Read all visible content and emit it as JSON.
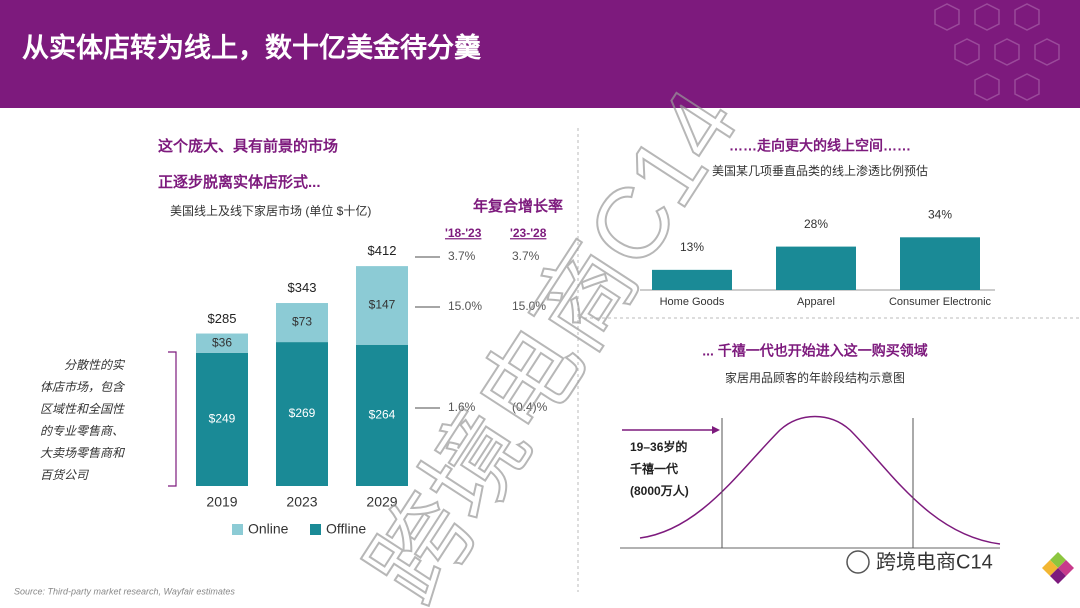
{
  "header": {
    "title": "从实体店转为线上，数十亿美金待分羹"
  },
  "chart_data": [
    {
      "type": "stacked-bar",
      "title_lines": [
        "这个庞大、具有前景的市场",
        "正逐步脱离实体店形式..."
      ],
      "subtitle": "美国线上及线下家居市场 (单位 $十亿)",
      "categories": [
        "2019",
        "2023",
        "2029"
      ],
      "series": [
        {
          "name": "Online",
          "color": "#8ccbd5",
          "values": [
            36,
            73,
            147
          ],
          "value_labels": [
            "$36",
            "$73",
            "$147"
          ]
        },
        {
          "name": "Offline",
          "color": "#1a8a96",
          "values": [
            249,
            269,
            264
          ],
          "value_labels": [
            "$249",
            "$269",
            "$264"
          ]
        }
      ],
      "totals": [
        285,
        343,
        412
      ],
      "total_labels": [
        "$285",
        "$343",
        "$412"
      ],
      "legend": "bottom"
    },
    {
      "type": "bar",
      "title": "……走向更大的线上空间……",
      "subtitle": "美国某几项垂直品类的线上渗透比例预估",
      "categories": [
        "Home Goods",
        "Apparel",
        "Consumer Electronic"
      ],
      "values": [
        13,
        28,
        34
      ],
      "value_labels": [
        "13%",
        "28%",
        "34%"
      ],
      "color": "#1a8a96"
    }
  ],
  "cagr": {
    "title": "年复合增长率",
    "headers": [
      "'18-'23",
      "'23-'28"
    ],
    "rows": [
      [
        "3.7%",
        "3.7%"
      ],
      [
        "15.0%",
        "15.0%"
      ],
      [
        "1.6%",
        "(0.4)%"
      ]
    ]
  },
  "note": {
    "lines": [
      "分散性的实",
      "体店市场，包含",
      "区域性和全国性",
      "的专业零售商、",
      "大卖场零售商和",
      "百货公司"
    ]
  },
  "generation": {
    "title": "... 千禧一代也开始进入这一购买领域",
    "subtitle": "家居用品顾客的年龄段结构示意图",
    "lines": [
      "19–36岁的",
      "千禧一代",
      "(8000万人)"
    ]
  },
  "source": "Source: Third-party market research, Wayfair estimates",
  "watermark": {
    "text": "跨境电商C14",
    "brand": "跨境电商C14"
  }
}
